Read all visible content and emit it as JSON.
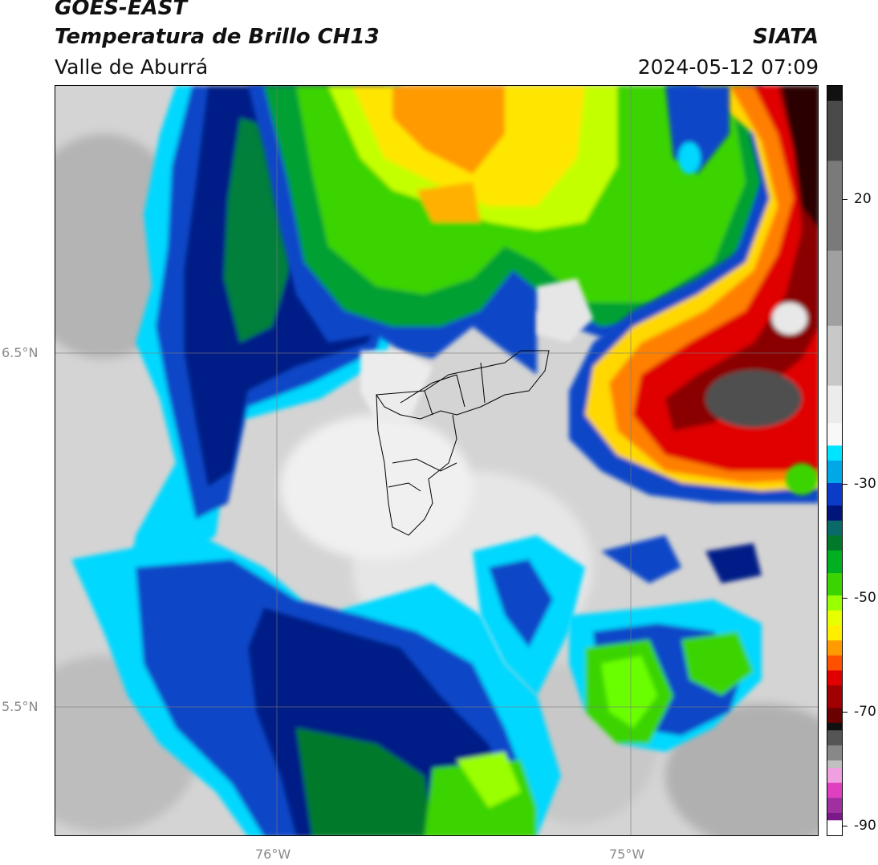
{
  "header": {
    "satellite": "GOES-EAST",
    "product": "Temperatura de Brillo CH13",
    "region": "Valle de Aburrá",
    "agency": "SIATA",
    "datetime": "2024-05-12 07:09"
  },
  "map": {
    "lat_labels": [
      {
        "label": "6.5°N",
        "value": 6.5
      },
      {
        "label": "5.5°N",
        "value": 5.5
      }
    ],
    "lon_labels": [
      {
        "label": "76°W",
        "value": -76.0
      },
      {
        "label": "75°W",
        "value": -75.0
      }
    ],
    "extent": {
      "lon_min": -76.62,
      "lon_max": -74.47,
      "lat_min": 5.14,
      "lat_max": 7.25
    }
  },
  "colorbar": {
    "labels": [
      "20",
      "-30",
      "-50",
      "-70",
      "-90"
    ],
    "range": [
      -90,
      30
    ],
    "colors": {
      "warm_gray": "#9a9a9a",
      "light_gray": "#ececec",
      "cyan": "#00e5ff",
      "blue": "#0a3cc8",
      "navy": "#02157a",
      "green_dark": "#007a2a",
      "green": "#3bd400",
      "lime": "#9aff00",
      "yellow": "#ffee00",
      "orange": "#ff9a00",
      "red": "#e00000",
      "dark_red": "#6a0000",
      "black": "#111111",
      "magenta": "#e040c0",
      "purple": "#7a1a8a"
    }
  }
}
